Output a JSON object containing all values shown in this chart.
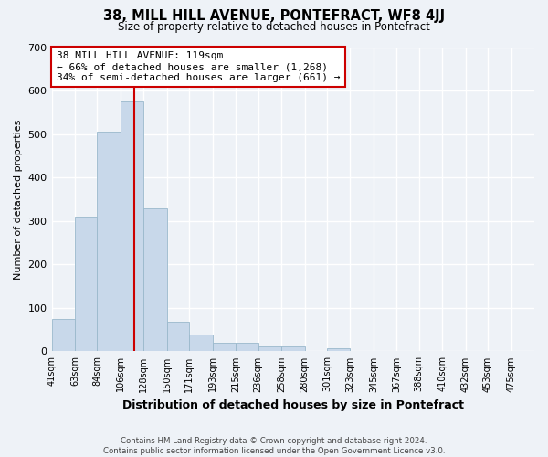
{
  "title": "38, MILL HILL AVENUE, PONTEFRACT, WF8 4JJ",
  "subtitle": "Size of property relative to detached houses in Pontefract",
  "xlabel": "Distribution of detached houses by size in Pontefract",
  "ylabel": "Number of detached properties",
  "bar_color": "#c8d8ea",
  "bar_edge_color": "#9ab8cc",
  "categories": [
    "41sqm",
    "63sqm",
    "84sqm",
    "106sqm",
    "128sqm",
    "150sqm",
    "171sqm",
    "193sqm",
    "215sqm",
    "236sqm",
    "258sqm",
    "280sqm",
    "301sqm",
    "323sqm",
    "345sqm",
    "367sqm",
    "388sqm",
    "410sqm",
    "432sqm",
    "453sqm",
    "475sqm"
  ],
  "values": [
    75,
    310,
    505,
    575,
    328,
    68,
    38,
    19,
    19,
    11,
    11,
    0,
    8,
    0,
    0,
    0,
    0,
    0,
    0,
    0,
    0
  ],
  "ylim": [
    0,
    700
  ],
  "yticks": [
    0,
    100,
    200,
    300,
    400,
    500,
    600,
    700
  ],
  "property_line_x": 119,
  "bin_edges": [
    41,
    63,
    84,
    106,
    128,
    150,
    171,
    193,
    215,
    236,
    258,
    280,
    301,
    323,
    345,
    367,
    388,
    410,
    432,
    453,
    475,
    497
  ],
  "annotation_line1": "38 MILL HILL AVENUE: 119sqm",
  "annotation_line2": "← 66% of detached houses are smaller (1,268)",
  "annotation_line3": "34% of semi-detached houses are larger (661) →",
  "annotation_box_color": "#ffffff",
  "annotation_box_edge_color": "#cc0000",
  "vline_color": "#cc0000",
  "footer_line1": "Contains HM Land Registry data © Crown copyright and database right 2024.",
  "footer_line2": "Contains public sector information licensed under the Open Government Licence v3.0.",
  "background_color": "#eef2f7",
  "grid_color": "#ffffff"
}
